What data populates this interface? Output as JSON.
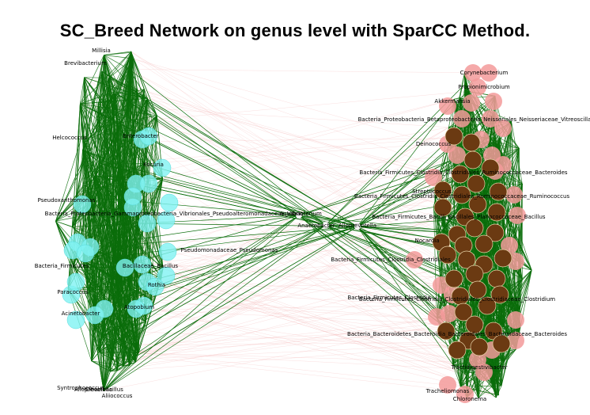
{
  "title": "SC_Breed Network on genus level with SparCC Method.",
  "colors": {
    "positive_edge": "#0b6d0b",
    "negative_edge": "#f3b7b7",
    "cluster_left_node": "#7ff3f3",
    "cluster_right_node_dark": "#6b3a12",
    "cluster_right_node_light": "#f39a9a",
    "center_node": "#ffffff"
  },
  "left_cluster_labels": [
    "Millisia",
    "Brevibacterium",
    "Helcococcus",
    "Pseudoxanthomonas",
    "Bacteria_Proteobacteria_Gammaproteobacteria_Vibrionales_Pseudoalteromonadaceae_Vibrio",
    "Bacteria_Firmicutes",
    "Paracoccus",
    "Acinetobacter",
    "Rothia",
    "Atopobium",
    "Syntrophococcus",
    "Alloprevotella",
    "Aliiococcus",
    "Cloacibacillus",
    "Pseudomonadaceae_Pseudomonas",
    "Enterobacter",
    "Bacillaceae_Bacillus",
    "Kocuria"
  ],
  "center_labels": [
    "Aquabacterium",
    "Anaerobacter",
    "Alloprevotella"
  ],
  "right_cluster_labels": [
    "Corynebacterium",
    "Propionimicrobium",
    "Akkermansia",
    "Bacteria_Proteobacteria_Betaproteobacteria_Neisseriales_Neisseriaceae_Vitreoscilla",
    "Deinococcus",
    "Bacteria_Firmicutes_Clostridia_Clostridiales_Ruminococcaceae_Bacteroides",
    "Streptococcus",
    "Bacteria_Firmicutes_Clostridia_Clostridiales_Ruminococcaceae_Ruminococcus",
    "Bacteria_Firmicutes_Bacilli_Bacillales_Planococcaceae_Bacillus",
    "Nocardia",
    "Bacteria_Firmicutes_Clostridia_Clostridiales",
    "Bacteria_Firmicutes_Clostridia",
    "Bacteria_Firmicutes_Clostridia_Clostridiales_Clostridiaceae_Clostridium",
    "Bacteria_Bacteroidetes_Bacteroidia_Bacteroidales_Bacteroidaceae_Bacteroides",
    "Tractidigestivibacter",
    "Chloronema",
    "Tracheliomonas"
  ]
}
